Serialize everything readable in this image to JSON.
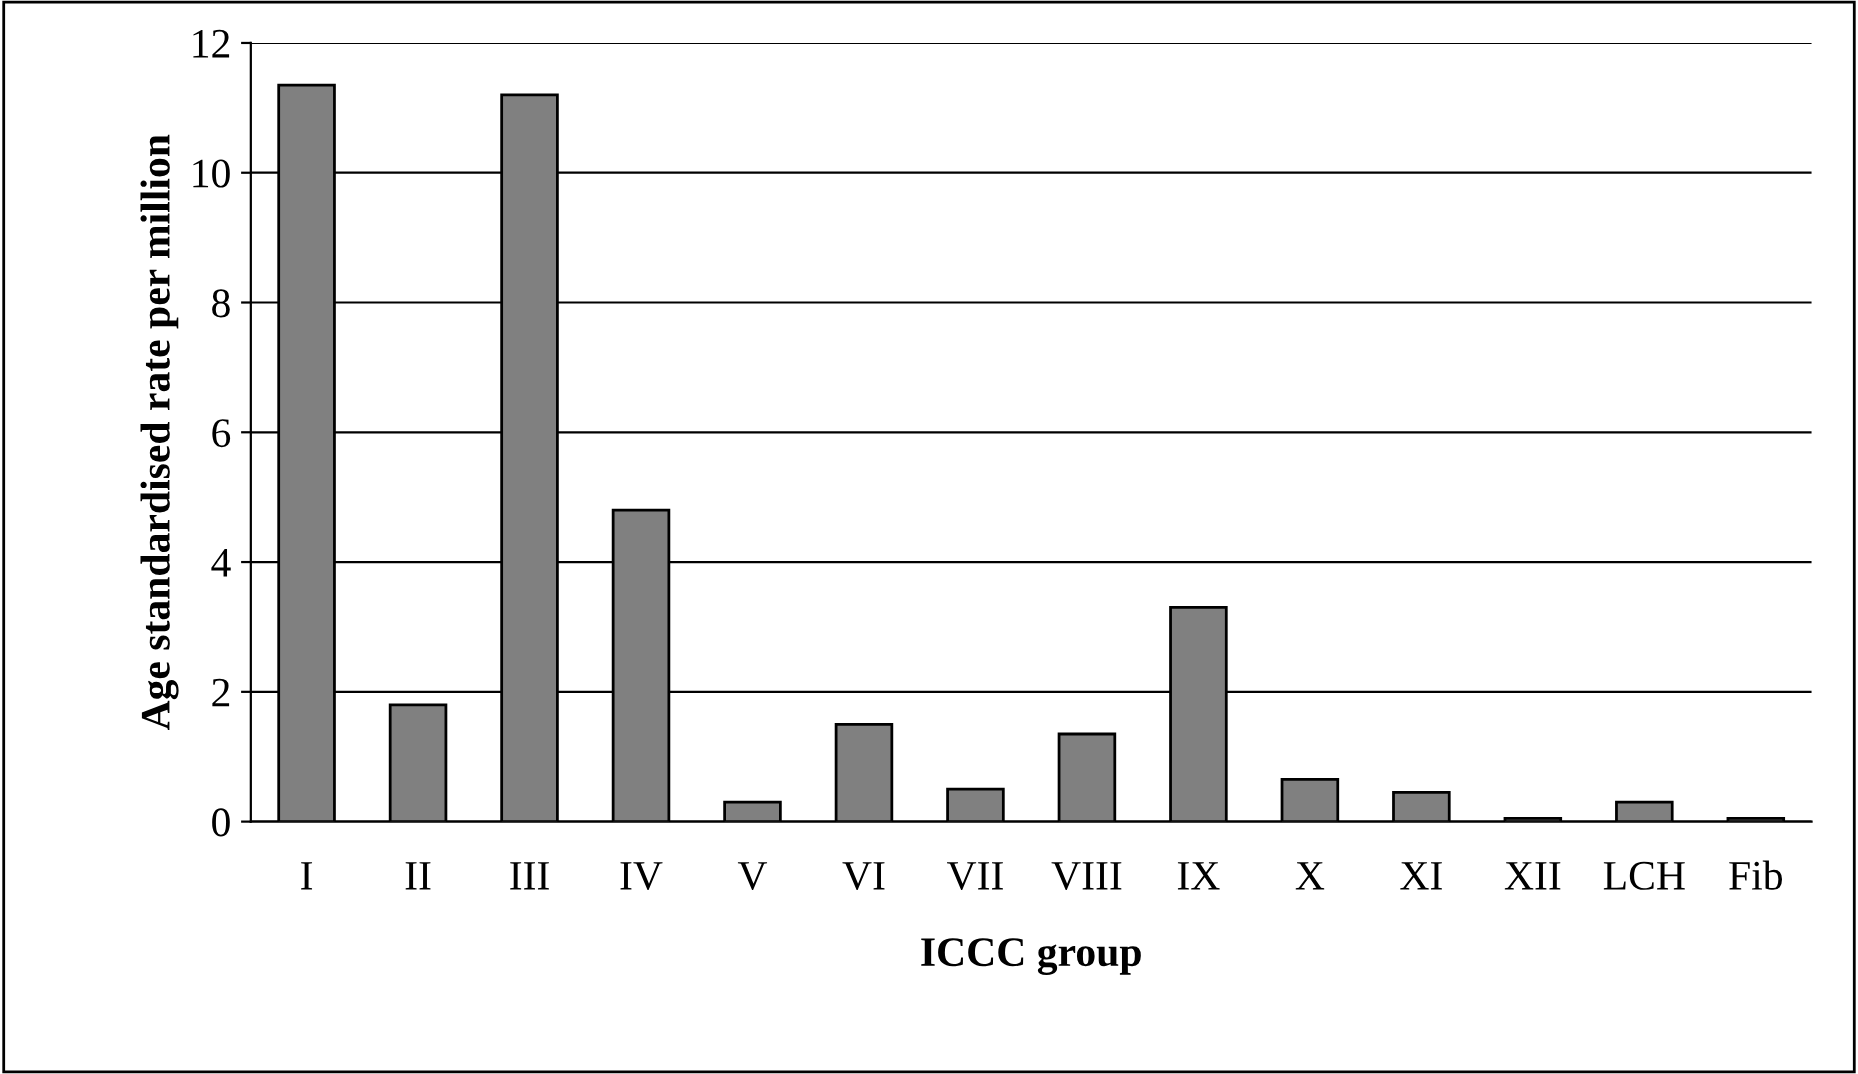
{
  "chart_data": {
    "type": "bar",
    "xlabel": "ICCC group",
    "ylabel": "Age standardised rate per million",
    "categories": [
      "I",
      "II",
      "III",
      "IV",
      "V",
      "VI",
      "VII",
      "VIII",
      "IX",
      "X",
      "XI",
      "XII",
      "LCH",
      "Fib"
    ],
    "values": [
      11.35,
      1.8,
      11.2,
      4.8,
      0.3,
      1.5,
      0.5,
      1.35,
      3.3,
      0.65,
      0.45,
      0.05,
      0.3,
      0.05
    ],
    "color": "#808080",
    "ylim": [
      0,
      12
    ],
    "yticks": [
      0,
      2,
      4,
      6,
      8,
      10,
      12
    ],
    "grid": "y"
  }
}
